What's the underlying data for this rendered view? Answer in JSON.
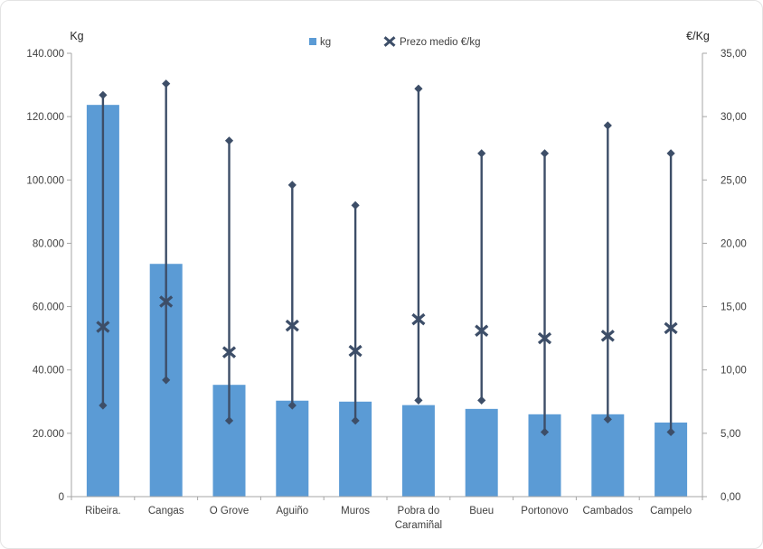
{
  "chart_data": {
    "type": "combo",
    "subtype": "bars on left axis (kg) + high-low range lines with X mean markers on right axis (EUR/kg)",
    "title": "",
    "categories": [
      "Ribeira.",
      "Cangas",
      "O Grove",
      "Aguiño",
      "Muros",
      "Pobra do Caramiñal",
      "Bueu",
      "Portonovo",
      "Cambados",
      "Campelo"
    ],
    "series": [
      {
        "name": "kg",
        "axis": "left",
        "mark": "bar",
        "values": [
          123700,
          73500,
          35300,
          30300,
          30000,
          28900,
          27700,
          26000,
          26000,
          23400
        ]
      },
      {
        "name": "Prezo medio €/kg",
        "axis": "right",
        "mark": "x",
        "values": [
          13.4,
          15.4,
          11.4,
          13.5,
          11.5,
          14.0,
          13.1,
          12.5,
          12.7,
          13.3
        ]
      }
    ],
    "price_range_eur_kg": {
      "axis": "right",
      "high": [
        31.7,
        32.6,
        28.1,
        24.6,
        23.0,
        32.2,
        27.1,
        27.1,
        29.3,
        27.1
      ],
      "low": [
        7.2,
        9.2,
        6.0,
        7.2,
        6.0,
        7.6,
        7.6,
        5.1,
        6.1,
        5.1
      ]
    },
    "axes": {
      "left": {
        "title": "Kg",
        "min": 0,
        "max": 140000,
        "step": 20000,
        "tick_labels": [
          "140.000",
          "120.000",
          "100.000",
          "80.000",
          "60.000",
          "40.000",
          "20.000",
          "0"
        ]
      },
      "right": {
        "title": "€/Kg",
        "min": 0,
        "max": 35,
        "step": 5,
        "tick_labels": [
          "35,00",
          "30,00",
          "25,00",
          "20,00",
          "15,00",
          "10,00",
          "5,00",
          "0,00"
        ]
      }
    },
    "legend": {
      "position": "top",
      "items": [
        {
          "label": "kg",
          "marker": "square"
        },
        {
          "label": "Prezo medio €/kg",
          "marker": "x"
        }
      ]
    },
    "grid": false,
    "colors": {
      "bar": "#5B9BD5",
      "marker": "#3D4E68",
      "axis_line": "#A6A6A6",
      "tick_text": "#3F3F3F",
      "title_text": "#262626"
    }
  }
}
